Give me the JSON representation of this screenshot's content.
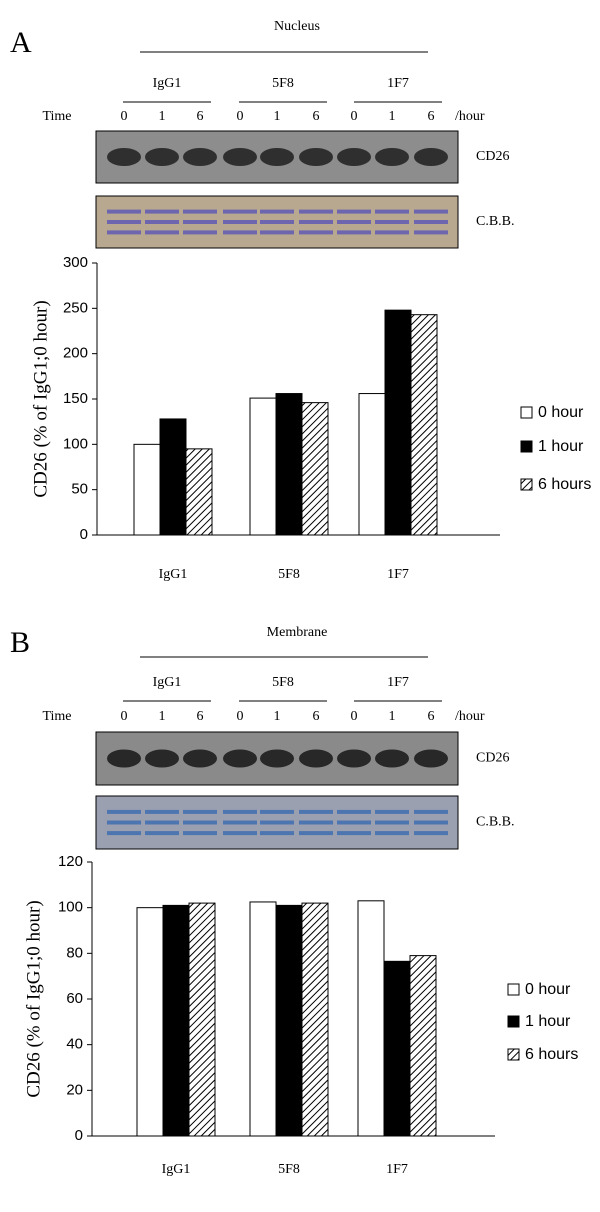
{
  "panels": [
    {
      "letter": "A",
      "fraction": "Nucleus",
      "groups": [
        "IgG1",
        "5F8",
        "1F7"
      ],
      "time_label": "Time",
      "lanes": [
        "0",
        "1",
        "6"
      ],
      "unit": "/hour",
      "blots": [
        "CD26",
        "C.B.B."
      ]
    },
    {
      "letter": "B",
      "fraction": "Membrane",
      "groups": [
        "IgG1",
        "5F8",
        "1F7"
      ],
      "time_label": "Time",
      "lanes": [
        "0",
        "1",
        "6"
      ],
      "unit": "/hour",
      "blots": [
        "CD26",
        "C.B.B."
      ]
    }
  ],
  "chart_data": [
    {
      "type": "bar",
      "y_label": "CD26 (% of IgG1;0 hour)",
      "categories": [
        "IgG1",
        "5F8",
        "1F7"
      ],
      "series": [
        {
          "name": "0 hour",
          "color": "#ffffff",
          "values": [
            100,
            151,
            156
          ]
        },
        {
          "name": "1 hour",
          "color": "#000000",
          "values": [
            128,
            156,
            248
          ]
        },
        {
          "name": "6 hours",
          "color": "#000000",
          "pattern": "hatch",
          "values": [
            95,
            146,
            243
          ]
        }
      ],
      "ylim": [
        0,
        300
      ],
      "yticks": [
        0,
        50,
        100,
        150,
        200,
        250,
        300
      ]
    },
    {
      "type": "bar",
      "y_label": "CD26 (% of IgG1;0 hour)",
      "categories": [
        "IgG1",
        "5F8",
        "1F7"
      ],
      "series": [
        {
          "name": "0 hour",
          "color": "#ffffff",
          "values": [
            100,
            102.5,
            103
          ]
        },
        {
          "name": "1 hour",
          "color": "#000000",
          "values": [
            101,
            101,
            76.5
          ]
        },
        {
          "name": "6 hours",
          "color": "#000000",
          "pattern": "hatch",
          "values": [
            102,
            102,
            79
          ]
        }
      ],
      "ylim": [
        0,
        120
      ],
      "yticks": [
        0,
        20,
        40,
        60,
        80,
        100,
        120
      ]
    }
  ]
}
